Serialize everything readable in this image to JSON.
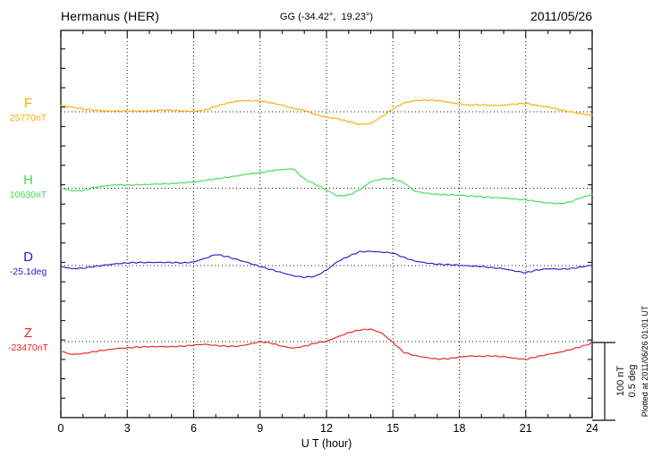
{
  "header": {
    "station": "Hermanus (HER)",
    "coords": "GG (-34.42°,  19.23°)",
    "date": "2011/05/26"
  },
  "xaxis": {
    "title": "U T (hour)",
    "tick_labels": [
      "0",
      "3",
      "6",
      "9",
      "12",
      "15",
      "18",
      "21",
      "24"
    ]
  },
  "scale_bar": {
    "line1": "100 nT",
    "line2": "0.5 deg"
  },
  "footer_note": "Plotted at 2011/06/26 01:01 UT",
  "chart_data": {
    "type": "line",
    "title": "Hermanus (HER) magnetogram, 2011/05/26",
    "xlabel": "U T (hour)",
    "x_range": [
      0,
      24
    ],
    "x_major_ticks": [
      0,
      3,
      6,
      9,
      12,
      15,
      18,
      21,
      24
    ],
    "x_minor_step_hours": 1,
    "sample_step_hours": 0.5,
    "grid": "dotted vertical at 3h intervals, dotted horizontal at each trace baseline",
    "scale": {
      "nT_per_division": 100,
      "deg_per_division": 0.5
    },
    "series": [
      {
        "name": "F",
        "base": "25770nT",
        "unit": "nT",
        "color": "#FFAA00",
        "offsets": [
          8,
          6,
          3.5,
          2,
          1,
          1,
          1,
          1,
          1,
          2,
          2,
          1,
          0.5,
          2,
          7,
          11,
          14,
          14.5,
          14,
          11.5,
          8.5,
          4.5,
          2,
          -3.5,
          -7,
          -9,
          -12.5,
          -16.5,
          -15,
          -6,
          3.5,
          11.5,
          14.5,
          15,
          14.5,
          12.5,
          10,
          8.5,
          9,
          8,
          8.5,
          10,
          11,
          8,
          6,
          3,
          0,
          -2.5,
          -4.5
        ]
      },
      {
        "name": "H",
        "base": "10630nT",
        "unit": "nT",
        "color": "#3EDE50",
        "offsets": [
          0,
          -3,
          -3,
          1,
          3,
          4.5,
          4,
          4.5,
          5,
          5.5,
          6,
          7,
          8,
          10,
          12,
          14,
          16,
          18.5,
          20,
          22.5,
          24,
          25,
          12,
          5,
          -2,
          -10,
          -9,
          -2,
          8.5,
          12,
          12.5,
          7,
          -4,
          -6.5,
          -8,
          -8.5,
          -9,
          -10,
          -11,
          -12,
          -12.5,
          -14,
          -15,
          -17,
          -19,
          -20,
          -18,
          -12,
          -8
        ]
      },
      {
        "name": "D",
        "base": "-25.1deg",
        "unit": "deg",
        "color": "#2222CC",
        "offsets": [
          -0.006,
          -0.02,
          -0.017,
          -0.006,
          0.003,
          0.012,
          0.017,
          0.02,
          0.02,
          0.02,
          0.02,
          0.017,
          0.023,
          0.046,
          0.072,
          0.058,
          0.037,
          0.017,
          -0.006,
          -0.026,
          -0.046,
          -0.066,
          -0.075,
          -0.069,
          -0.029,
          0.026,
          0.06,
          0.089,
          0.092,
          0.086,
          0.081,
          0.052,
          0.029,
          0.017,
          0.009,
          0.006,
          0.003,
          -0.003,
          -0.006,
          -0.014,
          -0.02,
          -0.035,
          -0.046,
          -0.029,
          -0.02,
          -0.023,
          -0.02,
          -0.009,
          0.003
        ]
      },
      {
        "name": "Z",
        "base": "-23470nT",
        "unit": "nT",
        "color": "#E82222",
        "offsets": [
          -12.5,
          -16.5,
          -15.5,
          -13,
          -11,
          -9,
          -8,
          -7,
          -6.5,
          -6.5,
          -6.5,
          -6,
          -4.5,
          -3.5,
          -5,
          -6,
          -6,
          -3.5,
          0,
          -2,
          -6,
          -8.5,
          -6,
          -2,
          0.5,
          6,
          11.5,
          15,
          16,
          11,
          -1,
          -14,
          -18,
          -20.5,
          -22.5,
          -22,
          -20,
          -18.5,
          -19,
          -18.5,
          -19.5,
          -21.5,
          -23,
          -19.5,
          -16.5,
          -14,
          -10.5,
          -6.5,
          -2
        ]
      }
    ]
  }
}
